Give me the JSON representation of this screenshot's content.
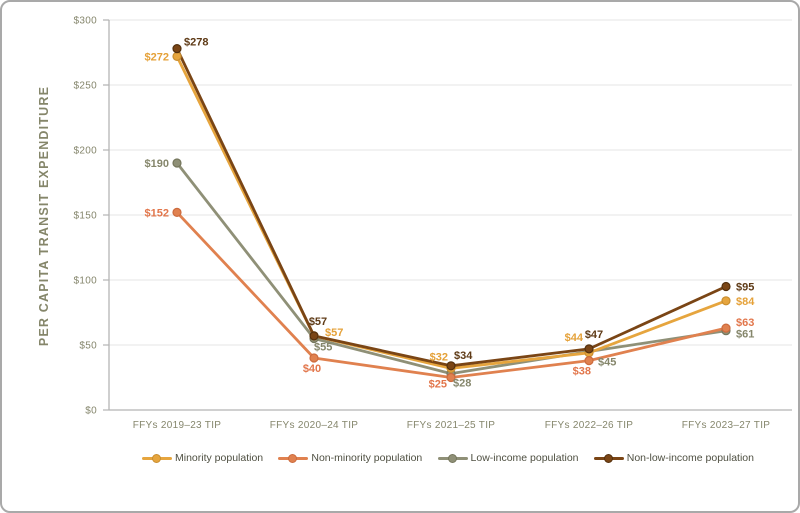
{
  "chart_data": {
    "type": "line",
    "title": "",
    "ylabel": "PER CAPITA TRANSIT EXPENDITURE",
    "xlabel": "",
    "value_prefix": "$",
    "ylim": [
      0,
      300
    ],
    "ytick_step": 50,
    "yticks": [
      "$0",
      "$50",
      "$100",
      "$150",
      "$200",
      "$250",
      "$300"
    ],
    "grid": true,
    "legend_position": "bottom",
    "categories": [
      "FFYs 2019–23 TIP",
      "FFYs 2020–24 TIP",
      "FFYs 2021–25 TIP",
      "FFYs 2022–26 TIP",
      "FFYs 2023–27 TIP"
    ],
    "series": [
      {
        "name": "Minority population",
        "color": "#e6a53e",
        "marker_stroke": "#c98e2f",
        "label_color": "#e5a138",
        "values": [
          272,
          57,
          32,
          44,
          84
        ]
      },
      {
        "name": "Non-minority population",
        "color": "#e0814f",
        "marker_stroke": "#cc6b3e",
        "label_color": "#e2764b",
        "values": [
          152,
          40,
          25,
          38,
          63
        ]
      },
      {
        "name": "Low-income population",
        "color": "#8f9077",
        "marker_stroke": "#75765c",
        "label_color": "#85866b",
        "values": [
          190,
          55,
          28,
          45,
          61
        ]
      },
      {
        "name": "Non-low-income population",
        "color": "#7a4515",
        "marker_stroke": "#53300e",
        "label_color": "#5e3a16",
        "values": [
          278,
          57,
          34,
          47,
          95
        ]
      }
    ],
    "axis_color": "#b5b5b5",
    "gridline_color": "#e4e4e4",
    "tick_label_color": "#85866c"
  }
}
